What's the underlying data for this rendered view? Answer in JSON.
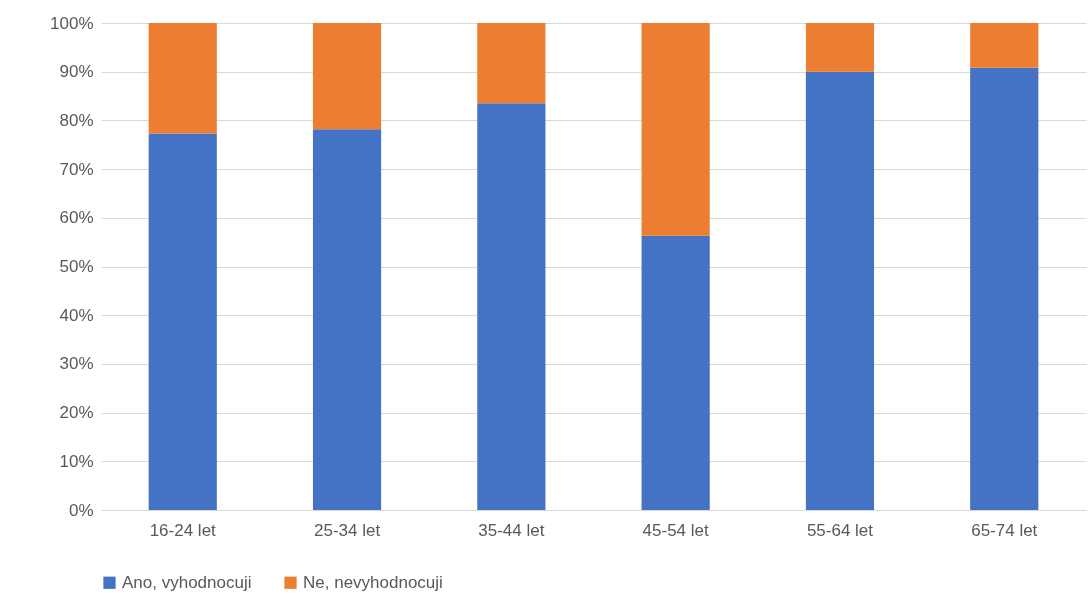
{
  "chart_data": {
    "type": "bar",
    "stacked": true,
    "categories": [
      "16-24 let",
      "25-34 let",
      "35-44 let",
      "45-54 let",
      "55-64 let",
      "65-74 let"
    ],
    "series": [
      {
        "name": "Ano, vyhodnocuji",
        "color": "#4472c4",
        "values": [
          77.3,
          78.2,
          83.5,
          56.3,
          90.0,
          90.8
        ]
      },
      {
        "name": "Ne, nevyhodnocuji",
        "color": "#ed7d31",
        "values": [
          22.7,
          21.8,
          16.5,
          43.7,
          10.0,
          9.2
        ]
      }
    ],
    "ylim": [
      0,
      100
    ],
    "yticks": [
      {
        "value": 0,
        "label": "0%"
      },
      {
        "value": 10,
        "label": "10%"
      },
      {
        "value": 20,
        "label": "20%"
      },
      {
        "value": 30,
        "label": "30%"
      },
      {
        "value": 40,
        "label": "40%"
      },
      {
        "value": 50,
        "label": "50%"
      },
      {
        "value": 60,
        "label": "60%"
      },
      {
        "value": 70,
        "label": "70%"
      },
      {
        "value": 80,
        "label": "80%"
      },
      {
        "value": 90,
        "label": "90%"
      },
      {
        "value": 100,
        "label": "100%"
      }
    ],
    "grid": "y",
    "legend": "bottom"
  }
}
